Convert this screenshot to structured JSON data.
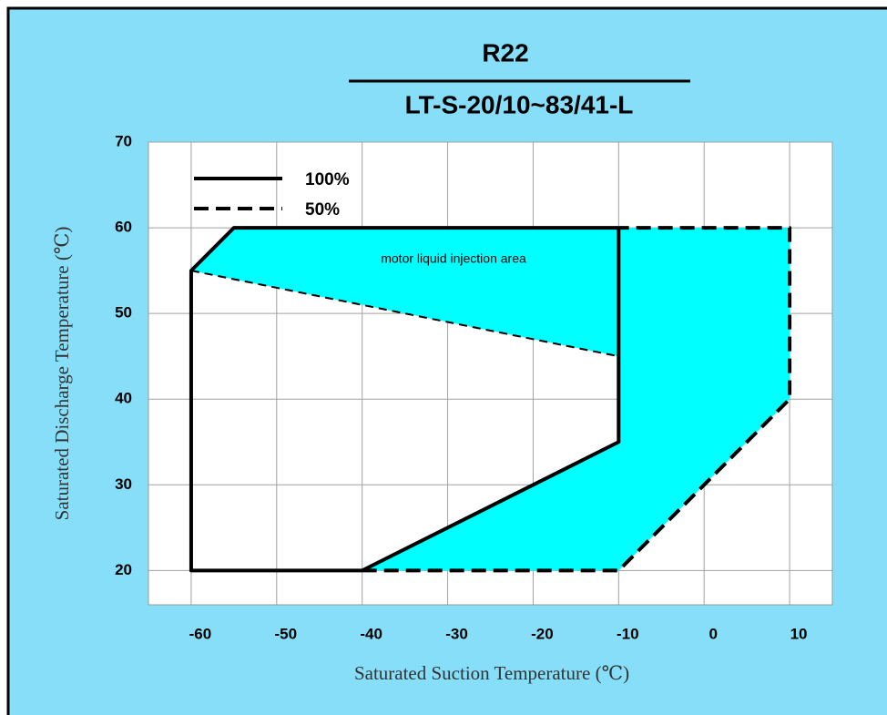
{
  "chart_data": {
    "type": "envelope",
    "title": "R22",
    "subtitle": "LT-S-20/10~83/41-L",
    "x_label": "Saturated Suction Temperature (℃)",
    "y_label": "Saturated Discharge Temperature (℃)",
    "annotation": "motor liquid injection area",
    "xlim": [
      -65,
      15
    ],
    "ylim": [
      16,
      70
    ],
    "xticks": [
      -60,
      -50,
      -40,
      -30,
      -20,
      -10,
      0,
      10
    ],
    "yticks": [
      20,
      30,
      40,
      50,
      60,
      70
    ],
    "grid": true,
    "legend": "upper left",
    "areas": [
      {
        "color": "#00ffff",
        "x": [
          -60,
          -55,
          -10,
          -10
        ],
        "y": [
          55,
          60,
          60,
          45
        ]
      },
      {
        "color": "#00ffff",
        "x": [
          -10,
          10,
          10,
          -10,
          -40,
          -10
        ],
        "y": [
          60,
          60,
          40,
          20,
          20,
          35
        ]
      }
    ],
    "boundary": {
      "color": "#000000",
      "line_style": "dashed",
      "x": [
        -60,
        -10
      ],
      "y": [
        55,
        45
      ]
    },
    "series": [
      {
        "name": "100%",
        "color": "#000000",
        "line_style": "solid",
        "x": [
          -10,
          -55,
          -60,
          -60,
          -40,
          -10,
          -10
        ],
        "y": [
          60,
          60,
          55,
          20,
          20,
          35,
          60
        ]
      },
      {
        "name": "50%",
        "color": "#000000",
        "line_style": "dashed",
        "x": [
          -40,
          -10,
          10,
          10,
          -10
        ],
        "y": [
          20,
          20,
          40,
          60,
          60
        ]
      }
    ]
  }
}
